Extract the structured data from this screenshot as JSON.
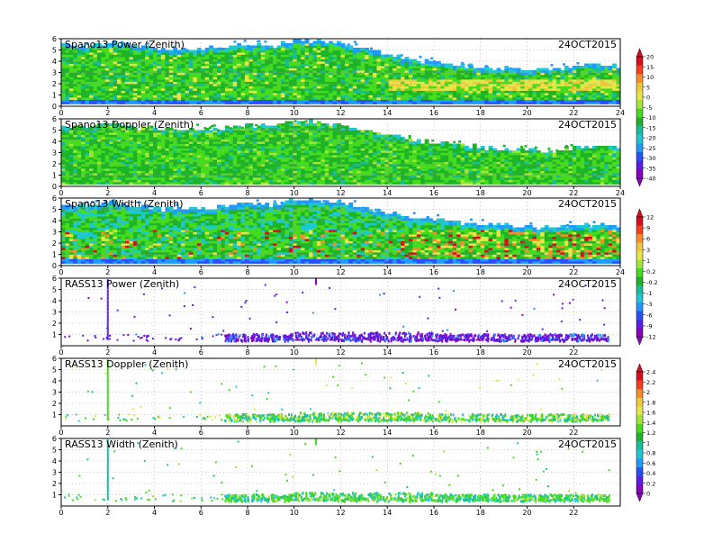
{
  "chart_data": [
    {
      "type": "heatmap",
      "title": "Spano13 Power (Zenith)",
      "date": "24OCT2015",
      "xlim": [
        0,
        24
      ],
      "ylim": [
        0,
        6
      ],
      "xticks": [
        "0",
        "2",
        "4",
        "6",
        "8",
        "10",
        "12",
        "14",
        "16",
        "18",
        "20",
        "22",
        "24"
      ],
      "yticks": [
        "0",
        "1",
        "2",
        "3",
        "4",
        "5",
        "6"
      ],
      "grid": true,
      "colorbar": {
        "ticks": [
          "20",
          "15",
          "10",
          "5",
          "0",
          "-5",
          "-10",
          "-15",
          "-20",
          "-25",
          "-30",
          "-35",
          "-40"
        ],
        "range": [
          -40,
          20
        ]
      },
      "profile": {
        "t": [
          0,
          1,
          2,
          3,
          4,
          5,
          6,
          7,
          8,
          9,
          10,
          11,
          12,
          13,
          14,
          15,
          16,
          17,
          18,
          19,
          20,
          21,
          22,
          23,
          24
        ],
        "top_km": [
          5.5,
          5.2,
          5.6,
          5.3,
          5.0,
          4.9,
          5.0,
          5.2,
          5.4,
          5.3,
          5.8,
          5.7,
          5.5,
          5.0,
          4.5,
          4.0,
          3.8,
          3.6,
          3.4,
          3.3,
          3.2,
          3.2,
          3.4,
          3.6,
          3.5
        ],
        "base_km": [
          0.2,
          0.2,
          0.2,
          0.2,
          0.2,
          0.2,
          0.2,
          0.2,
          0.2,
          0.2,
          0.2,
          0.2,
          0.2,
          0.2,
          0.2,
          0.2,
          0.2,
          0.2,
          0.2,
          0.2,
          0.2,
          0.2,
          0.2,
          0.2,
          0.2
        ]
      },
      "approx_dominant_value": -15
    },
    {
      "type": "heatmap",
      "title": "Spano13 Doppler (Zenith)",
      "date": "24OCT2015",
      "xlim": [
        0,
        24
      ],
      "ylim": [
        0,
        6
      ],
      "xticks": [
        "0",
        "2",
        "4",
        "6",
        "8",
        "10",
        "12",
        "14",
        "16",
        "18",
        "20",
        "22",
        "24"
      ],
      "yticks": [
        "0",
        "1",
        "2",
        "3",
        "4",
        "5",
        "6"
      ],
      "grid": true,
      "profile": {
        "t": [
          0,
          1,
          2,
          3,
          4,
          5,
          6,
          7,
          8,
          9,
          10,
          11,
          12,
          13,
          14,
          15,
          16,
          17,
          18,
          19,
          20,
          21,
          22,
          23,
          24
        ],
        "top_km": [
          5.3,
          5.1,
          5.5,
          5.2,
          5.0,
          4.9,
          5.0,
          5.1,
          5.3,
          5.2,
          5.8,
          5.6,
          5.4,
          4.9,
          4.5,
          4.0,
          3.8,
          3.6,
          3.4,
          3.3,
          3.2,
          3.1,
          3.3,
          3.5,
          3.4
        ],
        "base_km": [
          0.2,
          0.2,
          0.2,
          0.2,
          0.2,
          0.2,
          0.2,
          0.2,
          0.2,
          0.2,
          0.2,
          0.2,
          0.2,
          0.2,
          0.2,
          0.2,
          0.2,
          0.2,
          0.2,
          0.2,
          0.2,
          0.2,
          0.2,
          0.2,
          0.2
        ]
      }
    },
    {
      "type": "heatmap",
      "title": "Spano13 Width (Zenith)",
      "date": "24OCT2015",
      "xlim": [
        0,
        24
      ],
      "ylim": [
        0,
        6
      ],
      "xticks": [
        "0",
        "2",
        "4",
        "6",
        "8",
        "10",
        "12",
        "14",
        "16",
        "18",
        "20",
        "22",
        "24"
      ],
      "yticks": [
        "0",
        "1",
        "2",
        "3",
        "4",
        "5",
        "6"
      ],
      "grid": true,
      "colorbar": {
        "ticks": [
          "12",
          "9",
          "6",
          "3",
          "1",
          "0.2",
          "-0.2",
          "-1",
          "-3",
          "-6",
          "-9",
          "-12"
        ],
        "range": [
          -12,
          12
        ]
      },
      "profile": {
        "t": [
          0,
          1,
          2,
          3,
          4,
          5,
          6,
          7,
          8,
          9,
          10,
          11,
          12,
          13,
          14,
          15,
          16,
          17,
          18,
          19,
          20,
          21,
          22,
          23,
          24
        ],
        "top_km": [
          5.4,
          5.2,
          5.6,
          5.3,
          5.0,
          4.9,
          5.0,
          5.2,
          5.4,
          5.3,
          5.9,
          5.7,
          5.5,
          5.0,
          4.6,
          4.2,
          4.0,
          3.8,
          3.6,
          3.5,
          3.3,
          3.3,
          3.5,
          3.6,
          3.5
        ],
        "base_km": [
          0.2,
          0.2,
          0.2,
          0.2,
          0.2,
          0.2,
          0.2,
          0.2,
          0.2,
          0.2,
          0.2,
          0.2,
          0.2,
          0.2,
          0.2,
          0.2,
          0.2,
          0.2,
          0.2,
          0.2,
          0.2,
          0.2,
          0.2,
          0.2,
          0.2
        ]
      }
    },
    {
      "type": "scatter",
      "title": "RASS13 Power (Zenith)",
      "date": "24OCT2015",
      "xlim": [
        0,
        24
      ],
      "ylim": [
        0,
        6
      ],
      "xticks": [
        "0",
        "2",
        "4",
        "6",
        "8",
        "10",
        "12",
        "14",
        "16",
        "18",
        "20",
        "22"
      ],
      "yticks": [
        "1",
        "2",
        "3",
        "4",
        "5",
        "6"
      ],
      "grid": true,
      "band_km": [
        0.5,
        1.2
      ],
      "spike_at_hour": 2.0,
      "approx_dominant_value": -9
    },
    {
      "type": "scatter",
      "title": "RASS13 Doppler (Zenith)",
      "date": "24OCT2015",
      "xlim": [
        0,
        24
      ],
      "ylim": [
        0,
        6
      ],
      "xticks": [
        "0",
        "2",
        "4",
        "6",
        "8",
        "10",
        "12",
        "14",
        "16",
        "18",
        "20",
        "22"
      ],
      "yticks": [
        "1",
        "2",
        "3",
        "4",
        "5",
        "6"
      ],
      "grid": true,
      "colorbar": {
        "ticks": [
          "2.4",
          "2.2",
          "2",
          "1.8",
          "1.6",
          "1.4",
          "1.2",
          "1",
          "0.8",
          "0.6",
          "0.4",
          "0.2",
          "0"
        ],
        "range": [
          0,
          2.4
        ]
      },
      "band_km": [
        0.5,
        1.2
      ],
      "spike_at_hour": 2.0
    },
    {
      "type": "scatter",
      "title": "RASS13 Width (Zenith)",
      "date": "24OCT2015",
      "xlim": [
        0,
        24
      ],
      "ylim": [
        0,
        6
      ],
      "xticks": [
        "0",
        "2",
        "4",
        "6",
        "8",
        "10",
        "12",
        "14",
        "16",
        "18",
        "20",
        "22"
      ],
      "yticks": [
        "1",
        "2",
        "3",
        "4",
        "5",
        "6"
      ],
      "grid": true,
      "band_km": [
        0.5,
        1.2
      ],
      "spike_at_hour": 2.0
    }
  ],
  "colors": {
    "palette": [
      "#8a00c0",
      "#5a1ee8",
      "#2850ff",
      "#1e9bff",
      "#1ec8d2",
      "#16be9c",
      "#1eb428",
      "#46dc1e",
      "#a0e632",
      "#e6e646",
      "#f0c83c",
      "#ff8a28",
      "#ff3c1e",
      "#dc0a1e"
    ]
  }
}
